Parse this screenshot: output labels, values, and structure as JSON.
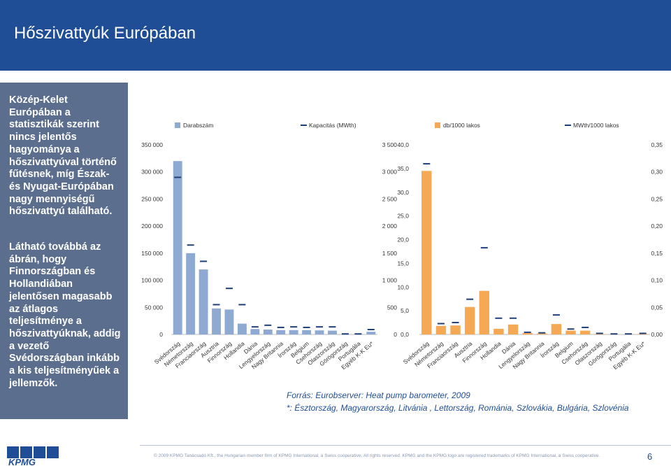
{
  "page_title": "Hőszivattyúk Európában",
  "side_panel": {
    "para1": "Közép-Kelet Európában a statisztikák szerint nincs jelentős hagyománya a hőszivattyúval történő fűtésnek, míg Észak- és Nyugat-Európában nagy mennyiségű hőszivattyú található.",
    "para2": "Látható továbbá az ábrán, hogy Finnországban és Hollandiában jelentősen magasabb az átlagos teljesítménye a hőszivattyúknak, addig a vezető Svédországban inkább a kis teljesítményűek a jellemzők."
  },
  "source": {
    "line1": "Forrás: Eurobserver: Heat pump barometer, 2009",
    "line2": "*: Észtország, Magyarország, Litvánia , Lettország, Románia, Szlovákia, Bulgária, Szlovénia"
  },
  "footer": {
    "copyright": "© 2009 KPMG Tanácsadó Kft., the Hungarian member firm of KPMG International, a Swiss cooperative. All rights reserved. KPMG and the KPMG logo are registered trademarks of KPMG International, a Swiss cooperative.",
    "page_number": "6",
    "logo_text": "KPMG"
  },
  "colors": {
    "title_bar": "#1f4e96",
    "side_panel": "#5c6e8d",
    "bars_left": "#8eaad3",
    "bars_right": "#f5a955",
    "markers": "#1f3f7a",
    "source_text": "#1f4e96"
  },
  "chart_data": [
    {
      "type": "bar",
      "categories": [
        "Svédország",
        "Németország",
        "Franciaország",
        "Ausztria",
        "Finnország",
        "Hollandia",
        "Dánia",
        "Lengyelország",
        "Nagy Britannia",
        "Írország",
        "Belgium",
        "Csehország",
        "Olaszország",
        "Görögország",
        "Portugália",
        "Egyéb K-K Eu*"
      ],
      "series": [
        {
          "name": "Darabszám",
          "type": "bar",
          "axis": "left",
          "values": [
            320000,
            150000,
            120000,
            48000,
            46000,
            20000,
            10000,
            9000,
            8000,
            8000,
            8000,
            7500,
            7000,
            500,
            300,
            5000
          ]
        },
        {
          "name": "Kapacitás (MWth)",
          "type": "marker",
          "axis": "right",
          "values": [
            2900,
            1650,
            1350,
            550,
            850,
            550,
            140,
            170,
            130,
            140,
            130,
            140,
            140,
            10,
            10,
            90
          ]
        }
      ],
      "left_axis": {
        "ylim": [
          0,
          350000
        ],
        "ticks": [
          "0",
          "50 000",
          "100 000",
          "150 000",
          "200 000",
          "250 000",
          "300 000",
          "350 000"
        ]
      },
      "right_axis": {
        "ylim": [
          0,
          3500
        ],
        "ticks": [
          "0",
          "500",
          "1 000",
          "1 500",
          "2 000",
          "2 500",
          "3 000",
          "3 500"
        ]
      },
      "legend_position": "top"
    },
    {
      "type": "bar",
      "categories": [
        "Svédország",
        "Németország",
        "Franciaország",
        "Ausztria",
        "Finnország",
        "Hollandia",
        "Dánia",
        "Lengyelország",
        "Nagy Britannia",
        "Írország",
        "Belgium",
        "Csehország",
        "Olaszország",
        "Görögország",
        "Portugália",
        "Egyéb K-K Eu*"
      ],
      "series": [
        {
          "name": "db/1000 lakos",
          "type": "bar",
          "axis": "left",
          "values": [
            34.5,
            1.8,
            1.9,
            5.8,
            9.2,
            1.2,
            2.1,
            0.3,
            0.2,
            2.2,
            0.8,
            0.8,
            0.1,
            0.05,
            0.03,
            0.1
          ]
        },
        {
          "name": "MWth/1000 lakos",
          "type": "marker",
          "axis": "right",
          "values": [
            0.315,
            0.02,
            0.022,
            0.065,
            0.16,
            0.03,
            0.03,
            0.004,
            0.003,
            0.036,
            0.01,
            0.013,
            0.002,
            0.001,
            0.001,
            0.002
          ]
        }
      ],
      "left_axis": {
        "ylim": [
          0,
          40
        ],
        "ticks": [
          "0,0",
          "5,0",
          "10,0",
          "15,0",
          "20,0",
          "25,0",
          "30,0",
          "35,0",
          "40,0"
        ]
      },
      "right_axis": {
        "ylim": [
          0,
          0.35
        ],
        "ticks": [
          "0,00",
          "0,05",
          "0,10",
          "0,15",
          "0,20",
          "0,25",
          "0,30",
          "0,35"
        ]
      },
      "legend_position": "top"
    }
  ]
}
